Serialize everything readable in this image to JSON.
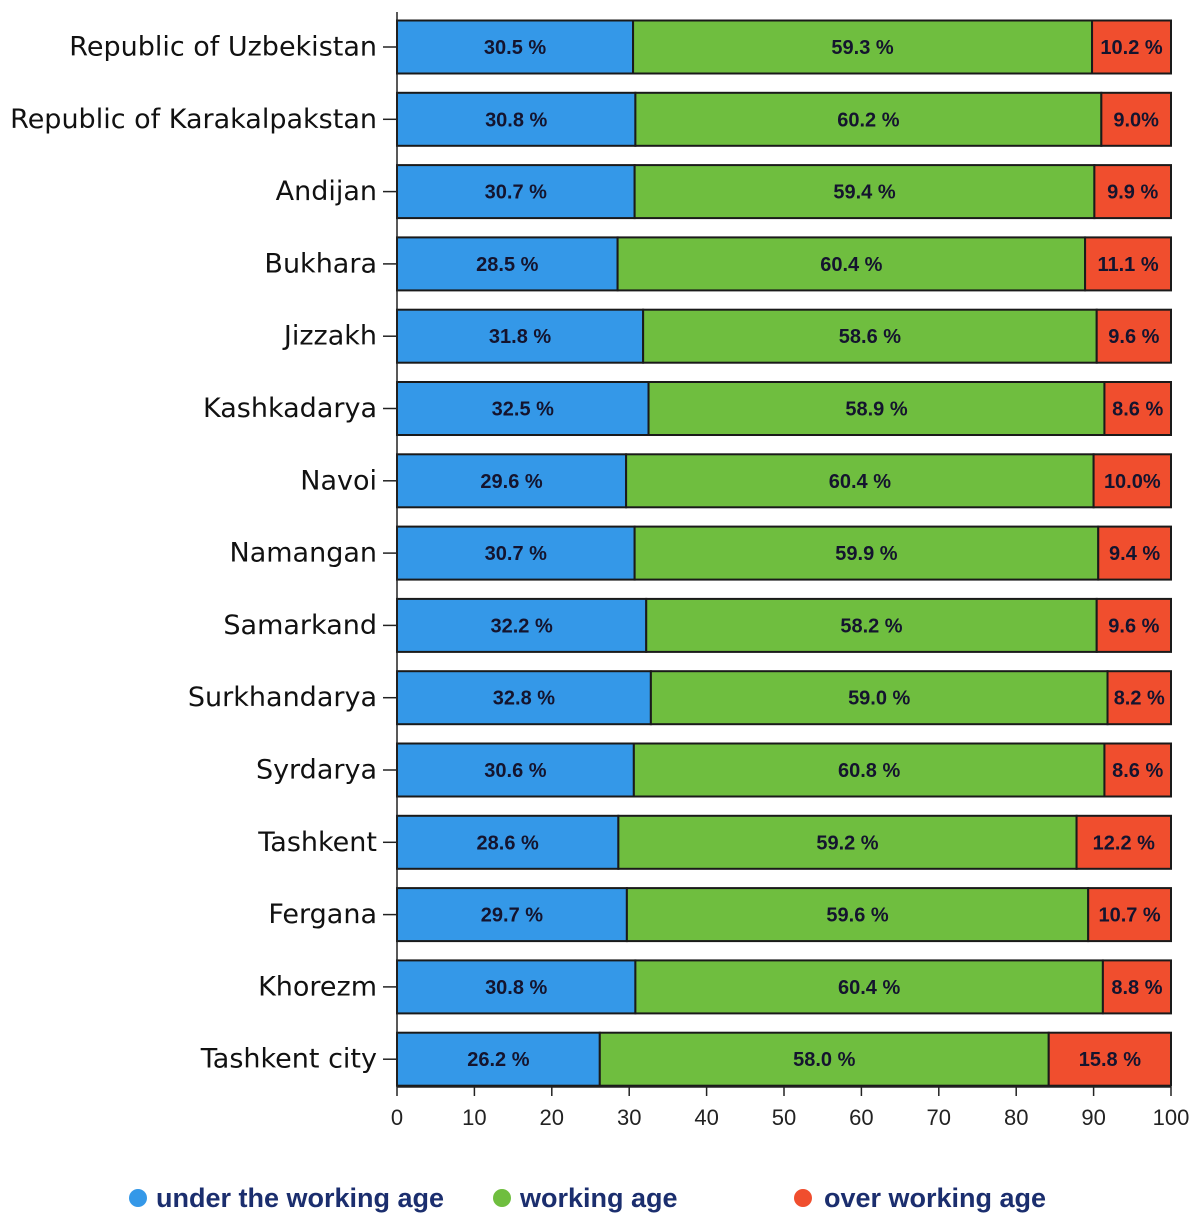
{
  "chart_data": {
    "type": "bar",
    "orientation": "horizontal",
    "stacked": true,
    "categories": [
      "Republic of Uzbekistan",
      "Republic of Karakalpakstan",
      "Andijan",
      "Bukhara",
      "Jizzakh",
      "Kashkadarya",
      "Navoi",
      "Namangan",
      "Samarkand",
      "Surkhandarya",
      "Syrdarya",
      "Tashkent",
      "Fergana",
      "Khorezm",
      "Tashkent city"
    ],
    "series": [
      {
        "name": "under the working age",
        "color": "#3498e8",
        "values": [
          30.5,
          30.8,
          30.7,
          28.5,
          31.8,
          32.5,
          29.6,
          30.7,
          32.2,
          32.8,
          30.6,
          28.6,
          29.7,
          30.8,
          26.2
        ],
        "labels": [
          "30.5 %",
          "30.8 %",
          "30.7 %",
          "28.5 %",
          "31.8 %",
          "32.5 %",
          "29.6 %",
          "30.7 %",
          "32.2 %",
          "32.8 %",
          "30.6 %",
          "28.6 %",
          "29.7 %",
          "30.8 %",
          "26.2 %"
        ]
      },
      {
        "name": "working age",
        "color": "#6fbe3f",
        "values": [
          59.3,
          60.2,
          59.4,
          60.4,
          58.6,
          58.9,
          60.4,
          59.9,
          58.2,
          59.0,
          60.8,
          59.2,
          59.6,
          60.4,
          58.0
        ],
        "labels": [
          "59.3 %",
          "60.2 %",
          "59.4 %",
          "60.4 %",
          "58.6 %",
          "58.9 %",
          "60.4 %",
          "59.9 %",
          "58.2 %",
          "59.0 %",
          "60.8 %",
          "59.2 %",
          "59.6 %",
          "60.4 %",
          "58.0 %"
        ]
      },
      {
        "name": "over working age",
        "color": "#f04e2e",
        "values": [
          10.2,
          9.0,
          9.9,
          11.1,
          9.6,
          8.6,
          10.0,
          9.4,
          9.6,
          8.2,
          8.6,
          12.2,
          10.7,
          8.8,
          15.8
        ],
        "labels": [
          "10.2 %",
          "9.0%",
          "9.9 %",
          "11.1 %",
          "9.6 %",
          "8.6 %",
          "10.0%",
          "9.4 %",
          "9.6 %",
          "8.2 %",
          "8.6 %",
          "12.2 %",
          "10.7 %",
          "8.8 %",
          "15.8 %"
        ]
      }
    ],
    "xlim": [
      0,
      100
    ],
    "xticks": [
      0,
      10,
      20,
      30,
      40,
      50,
      60,
      70,
      80,
      90,
      100
    ],
    "grid": false,
    "legend_position": "bottom",
    "title": "",
    "xlabel": "",
    "ylabel": ""
  }
}
